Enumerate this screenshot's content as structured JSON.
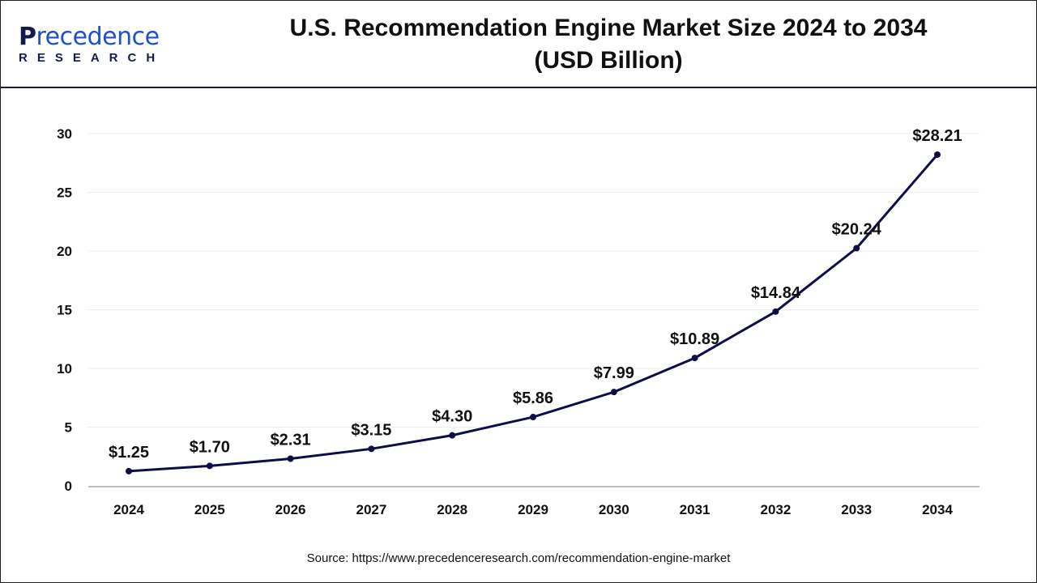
{
  "header": {
    "logo_text": "Precedence",
    "logo_sub": "RESEARCH",
    "title_line1": "U.S. Recommendation Engine Market Size 2024 to 2034",
    "title_line2": "(USD Billion)"
  },
  "source": "Source: https://www.precedenceresearch.com/recommendation-engine-market",
  "chart_data": {
    "type": "line",
    "title": "U.S. Recommendation Engine Market Size 2024 to 2034 (USD Billion)",
    "categories": [
      "2024",
      "2025",
      "2026",
      "2027",
      "2028",
      "2029",
      "2030",
      "2031",
      "2032",
      "2033",
      "2034"
    ],
    "values": [
      1.25,
      1.7,
      2.31,
      3.15,
      4.3,
      5.86,
      7.99,
      10.89,
      14.84,
      20.24,
      28.21
    ],
    "data_labels": [
      "$1.25",
      "$1.70",
      "$2.31",
      "$3.15",
      "$4.30",
      "$5.86",
      "$7.99",
      "$10.89",
      "$14.84",
      "$20.24",
      "$28.21"
    ],
    "yticks": [
      0,
      5,
      10,
      15,
      20,
      25,
      30
    ],
    "ylim": [
      0,
      30
    ],
    "grid": true,
    "line_color": "#0d0d4a"
  }
}
